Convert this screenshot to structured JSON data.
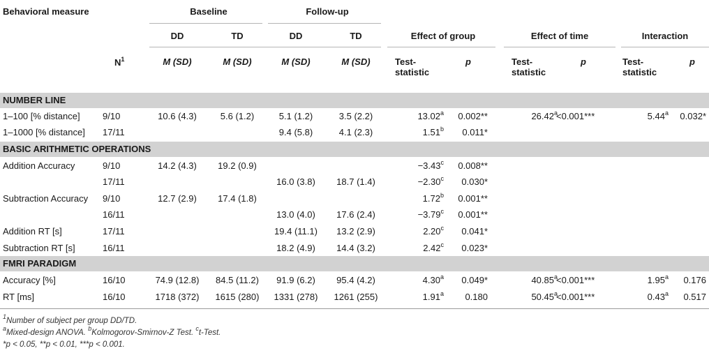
{
  "header": {
    "behavioral_measure": "Behavioral measure",
    "baseline": "Baseline",
    "followup": "Follow-up",
    "dd": "DD",
    "td": "TD",
    "effect_group": "Effect of group",
    "effect_time": "Effect of time",
    "interaction": "Interaction",
    "n": "N",
    "n_sup": "1",
    "msd": "M (SD)",
    "test": "Test-",
    "statistic": "statistic",
    "p": "p"
  },
  "sections": {
    "number_line": "NUMBER LINE",
    "arith": "BASIC ARITHMETIC OPERATIONS",
    "fmri": "FMRI PARADIGM"
  },
  "rows": {
    "r1": {
      "label": "1–100 [% distance]",
      "n": "9/10",
      "b_dd": "10.6 (4.3)",
      "b_td": "5.6 (1.2)",
      "f_dd": "5.1 (1.2)",
      "f_td": "3.5 (2.2)",
      "g_stat": "13.02",
      "g_sup": "a",
      "g_p": "0.002**",
      "t_stat": "26.42",
      "t_sup": "a",
      "t_p": "<0.001***",
      "i_stat": "5.44",
      "i_sup": "a",
      "i_p": "0.032*"
    },
    "r2": {
      "label": "1–1000 [% distance]",
      "n": "17/11",
      "f_dd": "9.4 (5.8)",
      "f_td": "4.1 (2.3)",
      "g_stat": "1.51",
      "g_sup": "b",
      "g_p": "0.011*"
    },
    "r3": {
      "label": "Addition Accuracy",
      "n": "9/10",
      "b_dd": "14.2 (4.3)",
      "b_td": "19.2 (0.9)",
      "g_stat": "−3.43",
      "g_sup": "c",
      "g_p": "0.008**"
    },
    "r4": {
      "n": "17/11",
      "f_dd": "16.0 (3.8)",
      "f_td": "18.7 (1.4)",
      "g_stat": "−2.30",
      "g_sup": "c",
      "g_p": "0.030*"
    },
    "r5": {
      "label": "Subtraction Accuracy",
      "n": "9/10",
      "b_dd": "12.7 (2.9)",
      "b_td": "17.4 (1.8)",
      "g_stat": "1.72",
      "g_sup": "b",
      "g_p": "0.001**"
    },
    "r6": {
      "n": "16/11",
      "f_dd": "13.0 (4.0)",
      "f_td": "17.6 (2.4)",
      "g_stat": "−3.79",
      "g_sup": "c",
      "g_p": "0.001**"
    },
    "r7": {
      "label": "Addition RT [s]",
      "n": "17/11",
      "f_dd": "19.4 (11.1)",
      "f_td": "13.2 (2.9)",
      "g_stat": "2.20",
      "g_sup": "c",
      "g_p": "0.041*"
    },
    "r8": {
      "label": "Subtraction RT [s]",
      "n": "16/11",
      "f_dd": "18.2 (4.9)",
      "f_td": "14.4 (3.2)",
      "g_stat": "2.42",
      "g_sup": "c",
      "g_p": "0.023*"
    },
    "r9": {
      "label": "Accuracy [%]",
      "n": "16/10",
      "b_dd": "74.9 (12.8)",
      "b_td": "84.5 (11.2)",
      "f_dd": "91.9 (6.2)",
      "f_td": "95.4 (4.2)",
      "g_stat": "4.30",
      "g_sup": "a",
      "g_p": "0.049*",
      "t_stat": "40.85",
      "t_sup": "a",
      "t_p": "<0.001***",
      "i_stat": "1.95",
      "i_sup": "a",
      "i_p": "0.176"
    },
    "r10": {
      "label": "RT [ms]",
      "n": "16/10",
      "b_dd": "1718 (372)",
      "b_td": "1615 (280)",
      "f_dd": "1331 (278)",
      "f_td": "1261 (255)",
      "g_stat": "1.91",
      "g_sup": "a",
      "g_p": "0.180",
      "t_stat": "50.45",
      "t_sup": "a",
      "t_p": "<0.001***",
      "i_stat": "0.43",
      "i_sup": "a",
      "i_p": "0.517"
    }
  },
  "footnotes": {
    "fn1_sup": "1",
    "fn1": "Number of subject per group DD/TD.",
    "fn2_a": "a",
    "fn2_a_text": "Mixed-design ANOVA. ",
    "fn2_b": "b",
    "fn2_b_text": "Kolmogorov-Smirnov-Z Test. ",
    "fn2_c": "c",
    "fn2_c_text": "t-Test.",
    "fn3": "*p < 0.05, **p < 0.01, ***p < 0.001."
  }
}
